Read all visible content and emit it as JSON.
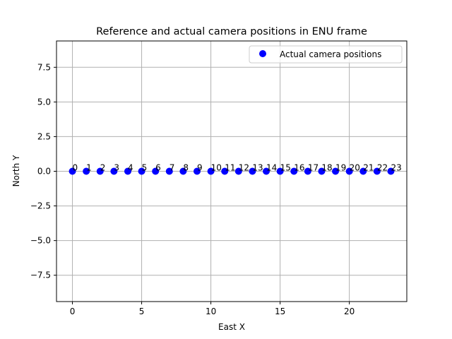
{
  "chart_data": {
    "type": "scatter",
    "title": "Reference and actual camera positions in ENU frame",
    "xlabel": "East X",
    "ylabel": "North Y",
    "xlim": [
      -1.15,
      24.15
    ],
    "ylim": [
      -9.4,
      9.4
    ],
    "xticks": [
      0,
      5,
      10,
      15,
      20
    ],
    "yticks": [
      -7.5,
      -5.0,
      -2.5,
      0.0,
      2.5,
      5.0,
      7.5
    ],
    "xtick_labels": [
      "0",
      "5",
      "10",
      "15",
      "20"
    ],
    "ytick_labels": [
      "−7.5",
      "−5.0",
      "−2.5",
      "0.0",
      "2.5",
      "5.0",
      "7.5"
    ],
    "grid": true,
    "legend_position": "top-right",
    "series": [
      {
        "name": "Actual camera positions",
        "color": "#0000ff",
        "marker": "circle",
        "x": [
          0,
          1,
          2,
          3,
          4,
          5,
          6,
          7,
          8,
          9,
          10,
          11,
          12,
          13,
          14,
          15,
          16,
          17,
          18,
          19,
          20,
          21,
          22,
          23
        ],
        "y": [
          0,
          0,
          0,
          0,
          0,
          0,
          0,
          0,
          0,
          0,
          0,
          0,
          0,
          0,
          0,
          0,
          0,
          0,
          0,
          0,
          0,
          0,
          0,
          0
        ]
      }
    ],
    "annotations": [
      "0",
      "1",
      "2",
      "3",
      "4",
      "5",
      "6",
      "7",
      "8",
      "9",
      "10",
      "11",
      "12",
      "13",
      "14",
      "15",
      "16",
      "17",
      "18",
      "19",
      "20",
      "21",
      "22",
      "23"
    ]
  }
}
